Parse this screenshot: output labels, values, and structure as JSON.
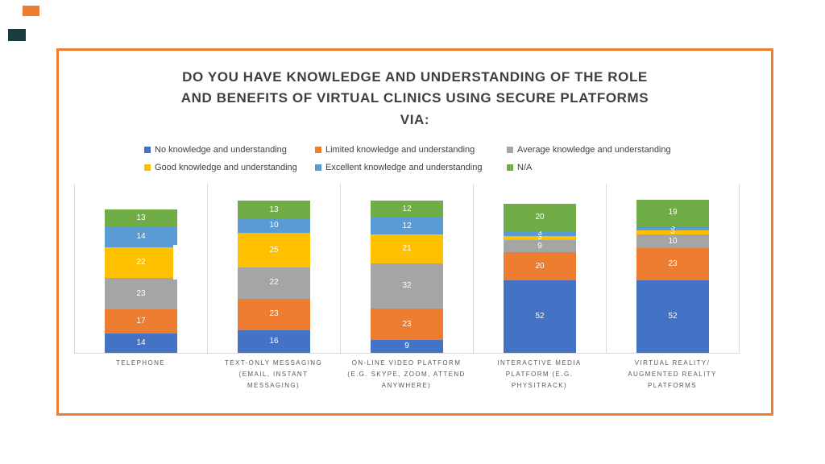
{
  "slide": {
    "title_lines": [
      "DO YOU HAVE KNOWLEDGE AND UNDERSTANDING OF THE ROLE",
      "AND BENEFITS OF VIRTUAL CLINICS USING SECURE PLATFORMS",
      "VIA:"
    ]
  },
  "colors": {
    "frame_border": "#ED7D31",
    "corner_accent_orange": "#ED7D31",
    "corner_accent_dark": "#1E3B3B",
    "gridline": "#D9D9D9",
    "title_text": "#3F3F3F",
    "category_text": "#595959",
    "value_label_text": "#FFFFFF"
  },
  "chart_data": {
    "type": "bar",
    "stacked": true,
    "title": "DO YOU HAVE KNOWLEDGE AND UNDERSTANDING OF THE ROLE AND BENEFITS OF VIRTUAL CLINICS USING SECURE PLATFORMS VIA:",
    "legend_position": "top",
    "grid": "vertical category separators and baseline only",
    "ylim": [
      0,
      120
    ],
    "categories": [
      "TELEPHONE",
      "TEXT-ONLY MESSAGING (EMAIL, INSTANT MESSAGING)",
      "ON-LINE VIDEO PLATFORM (E.G. SKYPE, ZOOM, ATTEND ANYWHERE)",
      "INTERACTIVE MEDIA PLATFORM (E.G. PHYSITRACK)",
      "VIRTUAL REALITY/ AUGMENTED REALITY PLATFORMS"
    ],
    "category_label_lines": [
      [
        "TELEPHONE"
      ],
      [
        "TEXT-ONLY MESSAGING",
        "(EMAIL, INSTANT",
        "MESSAGING)"
      ],
      [
        "ON-LINE VIDEO PLATFORM",
        "(E.G. SKYPE, ZOOM, ATTEND",
        "ANYWHERE)"
      ],
      [
        "INTERACTIVE MEDIA",
        "PLATFORM (E.G.",
        "PHYSITRACK)"
      ],
      [
        "VIRTUAL REALITY/",
        "AUGMENTED REALITY",
        "PLATFORMS"
      ]
    ],
    "series": [
      {
        "name": "No knowledge and understanding",
        "color": "#4472C4",
        "values": [
          14,
          16,
          9,
          52,
          52
        ]
      },
      {
        "name": "Limited knowledge and understanding",
        "color": "#ED7D31",
        "values": [
          17,
          23,
          23,
          20,
          23
        ]
      },
      {
        "name": "Average knowledge and understanding",
        "color": "#A5A5A5",
        "values": [
          23,
          22,
          32,
          9,
          10
        ]
      },
      {
        "name": "Good knowledge and understanding",
        "color": "#FFC000",
        "values": [
          22,
          25,
          21,
          3,
          3
        ]
      },
      {
        "name": "Excellent knowledge and understanding",
        "color": "#5B9BD5",
        "values": [
          14,
          10,
          12,
          3,
          3
        ]
      },
      {
        "name": "N/A",
        "color": "#70AD47",
        "values": [
          13,
          13,
          12,
          20,
          19
        ]
      }
    ]
  }
}
